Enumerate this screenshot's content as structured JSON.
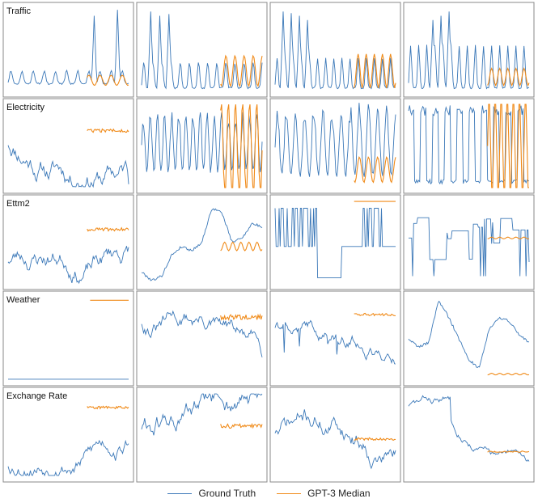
{
  "chart_data": {
    "type": "line",
    "layout": "grid",
    "rows": [
      "Traffic",
      "Electricity",
      "Ettm2",
      "Weather",
      "Exchange Rate"
    ],
    "columns_per_row": 4,
    "axes_visible": false,
    "grid": false,
    "legend_position": "bottom-center",
    "legend": [
      {
        "name": "Ground Truth",
        "color": "#3b78b8"
      },
      {
        "name": "GPT-3 Median",
        "color": "#f08a18"
      }
    ],
    "panels": [
      {
        "row": "Traffic",
        "col": 1,
        "title": "Traffic",
        "kind": "spikyperiod",
        "period": 11,
        "spikes": [
          [
            85,
            0.9
          ],
          [
            108,
            0.97
          ]
        ],
        "base": 0.1,
        "amp": 0.15,
        "pred": 0.14,
        "pred_amp": 0.06
      },
      {
        "row": "Traffic",
        "col": 2,
        "title": "",
        "kind": "spikyperiod",
        "period": 9,
        "spikes": [
          [
            9,
            0.95
          ],
          [
            18,
            0.9
          ],
          [
            27,
            0.92
          ]
        ],
        "base": 0.05,
        "amp": 0.3,
        "pred": 0.25,
        "pred_amp": 0.18
      },
      {
        "row": "Traffic",
        "col": 3,
        "title": "",
        "kind": "spikyperiod",
        "period": 8,
        "spikes": [
          [
            8,
            0.95
          ],
          [
            16,
            0.93
          ],
          [
            24,
            0.9
          ],
          [
            32,
            0.85
          ]
        ],
        "base": 0.05,
        "amp": 0.35,
        "pred": 0.25,
        "pred_amp": 0.2
      },
      {
        "row": "Traffic",
        "col": 4,
        "title": "",
        "kind": "spikyperiod",
        "period": 8,
        "spikes": [
          [
            24,
            0.85
          ],
          [
            32,
            0.9
          ],
          [
            40,
            0.95
          ]
        ],
        "base": 0.05,
        "amp": 0.5,
        "pred": 0.18,
        "pred_amp": 0.1
      },
      {
        "row": "Electricity",
        "col": 1,
        "title": "Electricity",
        "kind": "walk",
        "seed": 11,
        "start": 0.55,
        "vol": 0.08,
        "end_drop": true,
        "pred": 0.68,
        "pred_vol": 0.02
      },
      {
        "row": "Electricity",
        "col": 2,
        "title": "",
        "kind": "osc",
        "period": 7,
        "base": 0.2,
        "amp": 0.75,
        "pred": 0.45,
        "pred_amp": 0.6
      },
      {
        "row": "Electricity",
        "col": 3,
        "title": "",
        "kind": "osc",
        "period": 9,
        "base": 0.15,
        "amp": 0.85,
        "pred": 0.22,
        "pred_amp": 0.15
      },
      {
        "row": "Electricity",
        "col": 4,
        "title": "",
        "kind": "square",
        "period": 6,
        "base": 0.08,
        "amp": 0.88,
        "pred": 0.5,
        "pred_amp": 0.85
      },
      {
        "row": "Ettm2",
        "col": 1,
        "title": "Ettm2",
        "kind": "walk",
        "seed": 23,
        "start": 0.3,
        "vol": 0.07,
        "trend": 0.004,
        "pred": 0.65,
        "pred_vol": 0.02
      },
      {
        "row": "Ettm2",
        "col": 2,
        "title": "",
        "kind": "smooth",
        "points": [
          0.15,
          0.05,
          0.1,
          0.35,
          0.45,
          0.4,
          0.5,
          0.9,
          0.85,
          0.5,
          0.55,
          0.72,
          0.68
        ],
        "pred": 0.45,
        "pred_amp": 0.05
      },
      {
        "row": "Ettm2",
        "col": 3,
        "title": "",
        "kind": "blocks",
        "seed": 7,
        "pred": 0.98,
        "pred_amp": 0
      },
      {
        "row": "Ettm2",
        "col": 4,
        "title": "",
        "kind": "steps",
        "seed": 5,
        "pred": 0.55,
        "pred_amp": 0.01
      },
      {
        "row": "Weather",
        "col": 1,
        "title": "Weather",
        "kind": "flat",
        "value": 0.02,
        "pred": 0.95,
        "pred_amp": 0
      },
      {
        "row": "Weather",
        "col": 2,
        "title": "",
        "kind": "walk",
        "seed": 31,
        "start": 0.7,
        "vol": 0.06,
        "pred": 0.75,
        "pred_vol": 0.03,
        "dip": true
      },
      {
        "row": "Weather",
        "col": 3,
        "title": "",
        "kind": "walk",
        "seed": 41,
        "start": 0.65,
        "vol": 0.05,
        "spiky_down": true,
        "pred": 0.78,
        "pred_vol": 0.015
      },
      {
        "row": "Weather",
        "col": 4,
        "title": "",
        "kind": "smooth",
        "points": [
          0.5,
          0.4,
          0.45,
          0.95,
          0.75,
          0.5,
          0.25,
          0.15,
          0.6,
          0.75,
          0.7,
          0.55,
          0.45
        ],
        "pred": 0.08,
        "pred_amp": 0.01
      },
      {
        "row": "Exchange Rate",
        "col": 1,
        "title": "Exchange Rate",
        "kind": "walk",
        "seed": 53,
        "start": 0.15,
        "vol": 0.06,
        "trend": 0.006,
        "pred": 0.82,
        "pred_vol": 0.015
      },
      {
        "row": "Exchange Rate",
        "col": 2,
        "title": "",
        "kind": "walk",
        "seed": 61,
        "start": 0.6,
        "vol": 0.08,
        "pred": 0.6,
        "pred_vol": 0.025
      },
      {
        "row": "Exchange Rate",
        "col": 3,
        "title": "",
        "kind": "walk",
        "seed": 71,
        "start": 0.55,
        "vol": 0.07,
        "pred": 0.45,
        "pred_vol": 0.015
      },
      {
        "row": "Exchange Rate",
        "col": 4,
        "title": "",
        "kind": "walk",
        "seed": 83,
        "start": 0.85,
        "vol": 0.03,
        "stepdown": true,
        "pred": 0.3,
        "pred_vol": 0.008
      }
    ]
  }
}
